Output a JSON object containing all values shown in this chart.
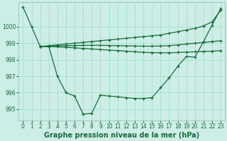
{
  "background_color": "#cceee6",
  "grid_color": "#99ddcc",
  "line_color": "#1a6b3a",
  "title": "Graphe pression niveau de la mer (hPa)",
  "xlim": [
    -0.5,
    23.5
  ],
  "ylim": [
    994.3,
    1001.5
  ],
  "yticks": [
    995,
    996,
    997,
    998,
    999,
    1000
  ],
  "xticks": [
    0,
    1,
    2,
    3,
    4,
    5,
    6,
    7,
    8,
    9,
    10,
    11,
    12,
    13,
    14,
    15,
    16,
    17,
    18,
    19,
    20,
    21,
    22,
    23
  ],
  "series1_x": [
    0,
    1,
    2,
    3,
    4,
    5,
    6,
    7,
    8,
    9,
    10,
    11,
    12,
    13,
    14,
    15,
    16,
    17,
    18,
    19,
    20,
    21,
    22,
    23
  ],
  "series1_y": [
    1001.2,
    1000.0,
    998.8,
    998.8,
    997.0,
    996.0,
    995.8,
    994.7,
    994.75,
    995.85,
    995.8,
    995.75,
    995.7,
    995.65,
    995.65,
    995.7,
    996.3,
    996.9,
    997.6,
    998.2,
    998.15,
    999.1,
    1000.1,
    1001.1
  ],
  "series2_x": [
    2,
    3,
    4,
    5,
    6,
    7,
    8,
    9,
    10,
    11,
    12,
    13,
    14,
    15,
    16,
    17,
    18,
    19,
    20,
    21,
    22,
    23
  ],
  "series2_y": [
    998.8,
    998.8,
    998.78,
    998.75,
    998.72,
    998.68,
    998.65,
    998.62,
    998.58,
    998.55,
    998.52,
    998.48,
    998.45,
    998.43,
    998.42,
    998.42,
    998.44,
    998.46,
    998.48,
    998.5,
    998.52,
    998.55
  ],
  "series3_x": [
    2,
    3,
    4,
    5,
    6,
    7,
    8,
    9,
    10,
    11,
    12,
    13,
    14,
    15,
    16,
    17,
    18,
    19,
    20,
    21,
    22,
    23
  ],
  "series3_y": [
    998.8,
    998.82,
    998.84,
    998.85,
    998.86,
    998.87,
    998.87,
    998.87,
    998.86,
    998.85,
    998.84,
    998.83,
    998.82,
    998.82,
    998.83,
    998.85,
    998.9,
    998.95,
    999.0,
    999.05,
    999.1,
    999.15
  ],
  "series4_x": [
    2,
    3,
    4,
    5,
    6,
    7,
    8,
    9,
    10,
    11,
    12,
    13,
    14,
    15,
    16,
    17,
    18,
    19,
    20,
    21,
    22,
    23
  ],
  "series4_y": [
    998.8,
    998.85,
    998.9,
    998.95,
    999.0,
    999.05,
    999.1,
    999.15,
    999.2,
    999.25,
    999.3,
    999.35,
    999.4,
    999.45,
    999.5,
    999.6,
    999.7,
    999.8,
    999.9,
    1000.05,
    1000.3,
    1001.0
  ],
  "title_fontsize": 7.0,
  "tick_fontsize": 5.5
}
